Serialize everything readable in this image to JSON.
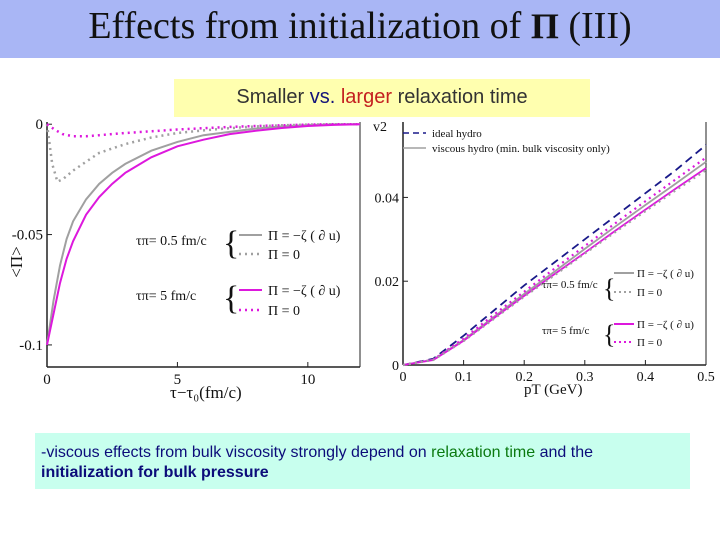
{
  "title": {
    "text": "Effects from initialization of",
    "symbol": "Π",
    "suffix": "(III)"
  },
  "subtitle": {
    "part1": "Smaller",
    "part2": "vs.",
    "part3": "larger",
    "part4": "relaxation time"
  },
  "note": {
    "part1": "-viscous effects from bulk viscosity strongly depend on",
    "part2": "relaxation time",
    "part3": "and the",
    "part4": "initialization for bulk pressure"
  },
  "colors": {
    "gray": "#a0a0a0",
    "magenta": "#dd18dd",
    "navy": "#1a1a8a",
    "title_bg": "#a9b6f5",
    "subtitle_bg": "#ffffaf",
    "note_bg": "#c8ffee"
  },
  "chart_data": [
    {
      "type": "line",
      "xlabel": "τ−τ₀(fm/c)",
      "ylabel": "<Π>",
      "xlim": [
        0,
        12
      ],
      "ylim": [
        -0.11,
        0.001
      ],
      "xticks": [
        {
          "value": 0,
          "label": "0"
        },
        {
          "value": 5,
          "label": "5"
        },
        {
          "value": 10,
          "label": "10"
        }
      ],
      "yticks": [
        {
          "value": 0,
          "label": "0"
        },
        {
          "value": -0.05,
          "label": "-0.05"
        },
        {
          "value": -0.1,
          "label": "-0.1"
        }
      ],
      "legend": {
        "group1_label": "τπ= 0.5 fm/c",
        "group2_label": "τπ= 5 fm/c",
        "solid_label": "Π = −ζ ( ∂ u)",
        "dotted_label": "Π = 0"
      },
      "series": [
        {
          "style": "solid",
          "color": "gray",
          "x": [
            0,
            0.25,
            0.5,
            0.75,
            1,
            1.5,
            2,
            2.5,
            3,
            4,
            5,
            6,
            7,
            8,
            9,
            10,
            11,
            12
          ],
          "y": [
            -0.1,
            -0.08,
            -0.064,
            -0.052,
            -0.044,
            -0.034,
            -0.027,
            -0.022,
            -0.018,
            -0.012,
            -0.008,
            -0.005,
            -0.0035,
            -0.002,
            -0.001,
            -0.0004,
            -0.0001,
            0
          ]
        },
        {
          "style": "dotted",
          "color": "gray",
          "x": [
            0,
            0.2,
            0.4,
            0.6,
            0.8,
            1,
            1.5,
            2,
            2.5,
            3,
            4,
            5,
            6,
            7,
            8,
            9,
            10,
            11,
            12
          ],
          "y": [
            0,
            -0.018,
            -0.026,
            -0.025,
            -0.023,
            -0.021,
            -0.017,
            -0.013,
            -0.011,
            -0.009,
            -0.006,
            -0.004,
            -0.0028,
            -0.0018,
            -0.001,
            -0.0005,
            -0.0002,
            0,
            0
          ]
        },
        {
          "style": "solid",
          "color": "magenta",
          "x": [
            0,
            0.25,
            0.5,
            0.75,
            1,
            1.5,
            2,
            2.5,
            3,
            4,
            5,
            6,
            7,
            8,
            9,
            10,
            11,
            12
          ],
          "y": [
            -0.1,
            -0.086,
            -0.072,
            -0.061,
            -0.053,
            -0.041,
            -0.033,
            -0.027,
            -0.022,
            -0.015,
            -0.01,
            -0.007,
            -0.0045,
            -0.003,
            -0.0017,
            -0.0008,
            -0.0003,
            0
          ]
        },
        {
          "style": "dotted",
          "color": "magenta",
          "x": [
            0,
            0.3,
            0.6,
            1,
            1.5,
            2,
            3,
            4,
            5,
            6,
            7,
            8,
            9,
            10,
            11,
            12
          ],
          "y": [
            0,
            -0.0025,
            -0.0045,
            -0.0055,
            -0.0055,
            -0.005,
            -0.004,
            -0.0032,
            -0.0024,
            -0.0018,
            -0.0012,
            -0.0008,
            -0.0005,
            -0.0002,
            0,
            0
          ]
        }
      ]
    },
    {
      "type": "line",
      "xlabel": "pT (GeV)",
      "ylabel": "v2",
      "xlim": [
        0,
        0.5
      ],
      "ylim": [
        0,
        0.058
      ],
      "xticks": [
        {
          "value": 0,
          "label": "0"
        },
        {
          "value": 0.1,
          "label": "0.1"
        },
        {
          "value": 0.2,
          "label": "0.2"
        },
        {
          "value": 0.3,
          "label": "0.3"
        },
        {
          "value": 0.4,
          "label": "0.4"
        },
        {
          "value": 0.5,
          "label": "0.5"
        }
      ],
      "yticks": [
        {
          "value": 0,
          "label": "0"
        },
        {
          "value": 0.02,
          "label": "0.02"
        },
        {
          "value": 0.04,
          "label": "0.04"
        }
      ],
      "legend": {
        "ideal_label": "ideal hydro",
        "viscous_label": "viscous hydro (min. bulk viscosity only)",
        "group1_label": "τπ= 0.5 fm/c",
        "group2_label": "τπ= 5 fm/c",
        "solid_label": "Π = −ζ ( ∂ u)",
        "dotted_label": "Π = 0"
      },
      "series": [
        {
          "name": "ideal hydro",
          "style": "dashed",
          "color": "navy",
          "x": [
            0,
            0.05,
            0.1,
            0.15,
            0.2,
            0.25,
            0.3,
            0.35,
            0.4,
            0.45,
            0.5
          ],
          "y": [
            0,
            0.0015,
            0.007,
            0.013,
            0.019,
            0.0245,
            0.03,
            0.0355,
            0.041,
            0.0465,
            0.0525
          ]
        },
        {
          "name": "viscous hydro (min. bulk viscosity only)",
          "style": "solid",
          "color": "gray",
          "x": [
            0,
            0.05,
            0.1,
            0.15,
            0.2,
            0.25,
            0.3,
            0.35,
            0.4,
            0.45,
            0.5
          ],
          "y": [
            0,
            0.0013,
            0.006,
            0.0115,
            0.017,
            0.0223,
            0.0277,
            0.033,
            0.0382,
            0.0433,
            0.0485
          ]
        },
        {
          "style": "solid",
          "color": "magenta",
          "x": [
            0,
            0.05,
            0.1,
            0.15,
            0.2,
            0.25,
            0.3,
            0.35,
            0.4,
            0.45,
            0.5
          ],
          "y": [
            0,
            0.0012,
            0.0058,
            0.0112,
            0.0165,
            0.0217,
            0.0268,
            0.032,
            0.0371,
            0.0421,
            0.047
          ]
        },
        {
          "style": "dotted",
          "color": "magenta",
          "x": [
            0,
            0.05,
            0.1,
            0.15,
            0.2,
            0.25,
            0.3,
            0.35,
            0.4,
            0.45,
            0.5
          ],
          "y": [
            0,
            0.0013,
            0.0063,
            0.012,
            0.0175,
            0.023,
            0.0284,
            0.0338,
            0.0391,
            0.0443,
            0.0495
          ]
        },
        {
          "style": "dotted",
          "color": "gray",
          "x": [
            0,
            0.05,
            0.1,
            0.15,
            0.2,
            0.25,
            0.3,
            0.35,
            0.4,
            0.45,
            0.5
          ],
          "y": [
            0,
            0.0012,
            0.0057,
            0.011,
            0.0163,
            0.0214,
            0.0266,
            0.0317,
            0.0367,
            0.0417,
            0.0465
          ]
        }
      ]
    }
  ]
}
